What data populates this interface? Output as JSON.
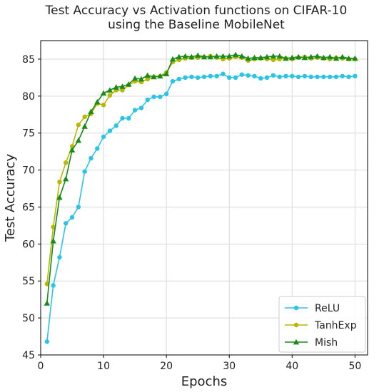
{
  "chart_data": {
    "type": "line",
    "title_lines": [
      "Test Accuracy vs Activation functions on CIFAR-10",
      "using the Baseline MobileNet"
    ],
    "xlabel": "Epochs",
    "ylabel": "Test Accuracy",
    "xlim": [
      0,
      52
    ],
    "ylim": [
      45,
      87.5
    ],
    "xticks": [
      0,
      10,
      20,
      30,
      40,
      50
    ],
    "yticks": [
      45,
      50,
      55,
      60,
      65,
      70,
      75,
      80,
      85
    ],
    "grid": true,
    "legend_position": "lower-right",
    "x": [
      1,
      2,
      3,
      4,
      5,
      6,
      7,
      8,
      9,
      10,
      11,
      12,
      13,
      14,
      15,
      16,
      17,
      18,
      19,
      20,
      21,
      22,
      23,
      24,
      25,
      26,
      27,
      28,
      29,
      30,
      31,
      32,
      33,
      34,
      35,
      36,
      37,
      38,
      39,
      40,
      41,
      42,
      43,
      44,
      45,
      46,
      47,
      48,
      49,
      50
    ],
    "series": [
      {
        "name": "ReLU",
        "color": "#2bc4e6",
        "marker": "circle",
        "values": [
          46.8,
          54.4,
          58.2,
          62.8,
          63.6,
          65.0,
          69.8,
          71.6,
          72.9,
          74.5,
          75.3,
          76.0,
          77.0,
          77.0,
          78.1,
          78.4,
          79.5,
          79.9,
          79.9,
          80.3,
          82.0,
          82.3,
          82.5,
          82.6,
          82.5,
          82.6,
          82.7,
          82.7,
          83.0,
          82.5,
          82.5,
          82.9,
          82.8,
          82.7,
          82.4,
          82.5,
          82.8,
          82.6,
          82.7,
          82.7,
          82.6,
          82.7,
          82.6,
          82.6,
          82.6,
          82.6,
          82.6,
          82.7,
          82.6,
          82.7
        ]
      },
      {
        "name": "TanhExp",
        "color": "#b8b800",
        "marker": "circle",
        "values": [
          54.6,
          62.3,
          68.4,
          71.0,
          73.2,
          76.1,
          77.2,
          77.6,
          79.0,
          78.8,
          80.1,
          80.8,
          80.8,
          81.5,
          82.0,
          81.9,
          82.3,
          82.6,
          82.7,
          83.2,
          84.6,
          84.9,
          85.1,
          85.2,
          85.2,
          85.3,
          85.4,
          85.2,
          85.0,
          85.1,
          85.3,
          85.2,
          84.8,
          85.0,
          85.1,
          85.0,
          84.9,
          85.0,
          85.1,
          85.0,
          85.2,
          85.3,
          85.1,
          85.2,
          85.1,
          85.0,
          85.2,
          85.1,
          85.0,
          85.0
        ]
      },
      {
        "name": "Mish",
        "color": "#1a8a1a",
        "marker": "triangle",
        "values": [
          52.0,
          60.4,
          66.3,
          68.8,
          72.7,
          74.0,
          75.9,
          77.9,
          79.2,
          80.4,
          80.8,
          81.2,
          81.3,
          81.6,
          82.4,
          82.3,
          82.8,
          82.6,
          82.7,
          83.0,
          85.0,
          85.3,
          85.4,
          85.3,
          85.5,
          85.3,
          85.3,
          85.4,
          85.4,
          85.4,
          85.6,
          85.4,
          85.1,
          85.2,
          85.2,
          85.3,
          85.4,
          85.4,
          85.1,
          85.2,
          85.3,
          85.2,
          85.3,
          85.4,
          85.2,
          85.3,
          85.1,
          85.3,
          85.1,
          85.1
        ]
      }
    ]
  }
}
